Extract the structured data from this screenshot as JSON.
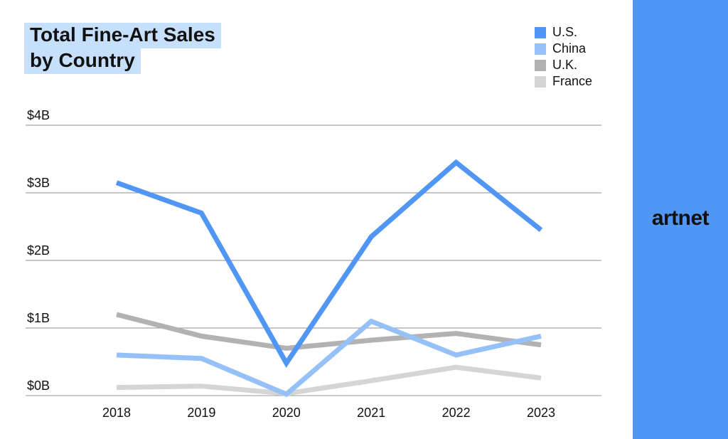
{
  "title_lines": [
    "Total Fine-Art Sales",
    "by Country"
  ],
  "brand": {
    "logo_text": "artnet",
    "panel_color": "#5096f4"
  },
  "chart_data": {
    "type": "line",
    "title": "Total Fine-Art Sales by Country",
    "x": [
      "2018",
      "2019",
      "2020",
      "2021",
      "2022",
      "2023"
    ],
    "y_ticks": [
      {
        "value": 0,
        "label": "$0B"
      },
      {
        "value": 1,
        "label": "$1B"
      },
      {
        "value": 2,
        "label": "$2B"
      },
      {
        "value": 3,
        "label": "$3B"
      },
      {
        "value": 4,
        "label": "$4B"
      }
    ],
    "ylim": [
      0,
      4
    ],
    "grid": true,
    "legend_position": "top-right",
    "series": [
      {
        "name": "U.S.",
        "color": "#5096f4",
        "values": [
          3.15,
          2.7,
          0.48,
          2.35,
          3.45,
          2.45
        ]
      },
      {
        "name": "China",
        "color": "#96c0f8",
        "values": [
          0.6,
          0.55,
          0.02,
          1.1,
          0.6,
          0.88
        ]
      },
      {
        "name": "U.K.",
        "color": "#b2b2b2",
        "values": [
          1.2,
          0.88,
          0.7,
          0.82,
          0.92,
          0.75
        ]
      },
      {
        "name": "France",
        "color": "#d5d5d5",
        "values": [
          0.12,
          0.14,
          0.03,
          0.22,
          0.42,
          0.26
        ]
      }
    ]
  }
}
